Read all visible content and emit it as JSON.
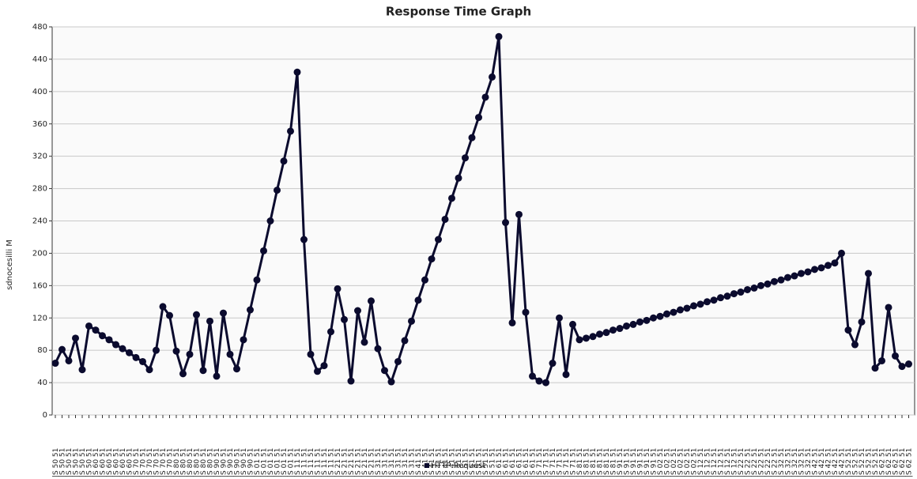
{
  "chart_data": {
    "type": "line",
    "title": "Response Time Graph",
    "y_label": "sdnocesilli M",
    "legend_label": "HTTP Request",
    "color": "#0b0b2e",
    "ylim": [
      0,
      480
    ],
    "yticks": [
      0,
      40,
      80,
      120,
      160,
      200,
      240,
      280,
      320,
      360,
      400,
      440,
      480
    ],
    "grid": true,
    "categories": [
      "|S 50 51",
      "|S 50 51",
      "|S 50 51",
      "|S 50 51",
      "|S 50 51",
      "|S 50 51",
      "|S 60 51",
      "|S 60 51",
      "|S 60 51",
      "|S 60 51",
      "|S 60 51",
      "|S 60 51",
      "|S 70 51",
      "|S 70 51",
      "|S 70 51",
      "|S 70 51",
      "|S 70 51",
      "|S 70 51",
      "|S 80 51",
      "|S 80 51",
      "|S 80 51",
      "|S 80 51",
      "|S 80 51",
      "|S 80 51",
      "|S 90 51",
      "|S 90 51",
      "|S 90 51",
      "|S 90 51",
      "|S 90 51",
      "|S 90 51",
      "|S 01 51",
      "|S 01 51",
      "|S 01 51",
      "|S 01 51",
      "|S 01 51",
      "|S 01 51",
      "|S 11 51",
      "|S 11 51",
      "|S 11 51",
      "|S 11 51",
      "|S 11 51",
      "|S 11 51",
      "|S 21 51",
      "|S 21 51",
      "|S 21 51",
      "|S 21 51",
      "|S 21 51",
      "|S 21 51",
      "|S 31 51",
      "|S 31 51",
      "|S 31 51",
      "|S 31 51",
      "|S 31 51",
      "|S 31 51",
      "|S 41 51",
      "|S 41 51",
      "|S 41 51",
      "|S 41 51",
      "|S 41 51",
      "|S 41 51",
      "|S 51 51",
      "|S 51 51",
      "|S 51 51",
      "|S 51 51",
      "|S 51 51",
      "|S 51 51",
      "|S 61 51",
      "|S 61 51",
      "|S 61 51",
      "|S 61 51",
      "|S 61 51",
      "|S 61 51",
      "|S 71 51",
      "|S 71 51",
      "|S 71 51",
      "|S 71 51",
      "|S 71 51",
      "|S 71 51",
      "|S 81 51",
      "|S 81 51",
      "|S 81 51",
      "|S 81 51",
      "|S 81 51",
      "|S 81 51",
      "|S 91 51",
      "|S 91 51",
      "|S 91 51",
      "|S 91 51",
      "|S 91 51",
      "|S 91 51",
      "|S 02 51",
      "|S 02 51",
      "|S 02 51",
      "|S 02 51",
      "|S 02 51",
      "|S 02 51",
      "|S 12 51",
      "|S 12 51",
      "|S 12 51",
      "|S 12 51",
      "|S 12 51",
      "|S 12 51",
      "|S 22 51",
      "|S 22 51",
      "|S 22 51",
      "|S 22 51",
      "|S 22 51",
      "|S 22 51",
      "|S 32 51",
      "|S 32 51",
      "|S 32 51",
      "|S 32 51",
      "|S 32 51",
      "|S 42 51",
      "|S 42 51",
      "|S 42 51",
      "|S 42 51",
      "|S 42 51",
      "|S 52 51",
      "|S 52 51",
      "|S 52 51",
      "|S 52 51",
      "|S 52 51",
      "|S 62 51",
      "|S 62 51",
      "|S 62 51",
      "|S 62 51",
      "|S 62 51"
    ],
    "values": [
      64,
      81,
      67,
      95,
      56,
      110,
      105,
      98,
      93,
      87,
      82,
      77,
      71,
      66,
      56,
      80,
      134,
      123,
      79,
      51,
      75,
      124,
      55,
      116,
      48,
      126,
      75,
      57,
      93,
      130,
      167,
      203,
      240,
      278,
      314,
      351,
      424,
      217,
      75,
      54,
      61,
      103,
      156,
      118,
      42,
      129,
      90,
      141,
      82,
      55,
      41,
      66,
      92,
      116,
      142,
      167,
      193,
      217,
      242,
      268,
      293,
      318,
      343,
      368,
      393,
      418,
      468,
      238,
      114,
      248,
      127,
      48,
      42,
      40,
      64,
      120,
      50,
      112,
      93,
      95,
      97,
      100,
      102,
      105,
      107,
      110,
      112,
      115,
      117,
      120,
      122,
      125,
      127,
      130,
      132,
      135,
      137,
      140,
      142,
      145,
      147,
      150,
      152,
      155,
      157,
      160,
      162,
      165,
      167,
      170,
      172,
      175,
      177,
      180,
      182,
      185,
      188,
      200,
      105,
      87,
      115,
      175,
      58,
      67,
      133,
      73,
      60,
      63
    ]
  }
}
